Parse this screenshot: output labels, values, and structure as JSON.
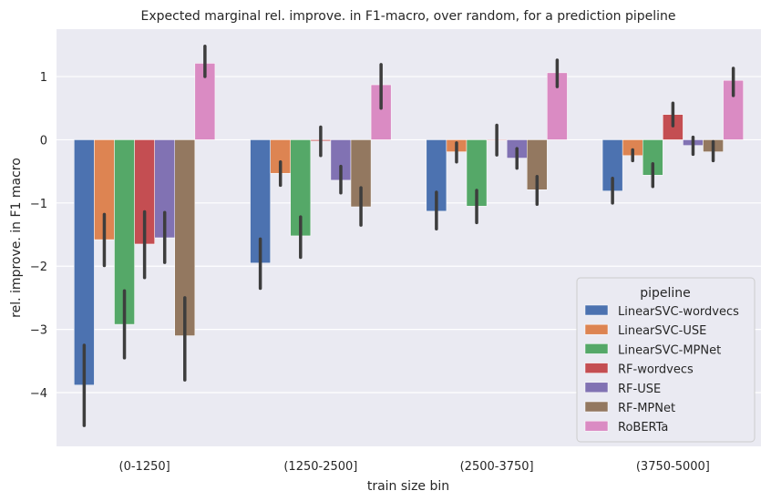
{
  "chart_data": {
    "type": "bar",
    "title": "Expected marginal rel. improve. in F1-macro, over random, for a prediction pipeline",
    "xlabel": "train size bin",
    "ylabel": "rel. improve. in F1 macro",
    "ylim": [
      -4.85,
      1.75
    ],
    "yticks": [
      1,
      0,
      -1,
      -2,
      -3,
      -4
    ],
    "ytick_labels": [
      "1",
      "0",
      "−1",
      "−2",
      "−3",
      "−4"
    ],
    "grid": true,
    "legend_title": "pipeline",
    "legend_position": "lower right",
    "categories": [
      "(0-1250]",
      "(1250-2500]",
      "(2500-3750]",
      "(3750-5000]"
    ],
    "series": [
      {
        "name": "LinearSVC-wordvecs",
        "color": "#4c72b0",
        "values": [
          -3.88,
          -1.95,
          -1.13,
          -0.81
        ],
        "ci": [
          [
            -4.52,
            -3.25
          ],
          [
            -2.35,
            -1.57
          ],
          [
            -1.41,
            -0.83
          ],
          [
            -1.0,
            -0.61
          ]
        ]
      },
      {
        "name": "LinearSVC-USE",
        "color": "#dd8452",
        "values": [
          -1.58,
          -0.53,
          -0.19,
          -0.25
        ],
        "ci": [
          [
            -1.99,
            -1.18
          ],
          [
            -0.72,
            -0.35
          ],
          [
            -0.35,
            -0.05
          ],
          [
            -0.33,
            -0.16
          ]
        ]
      },
      {
        "name": "LinearSVC-MPNet",
        "color": "#55a868",
        "values": [
          -2.92,
          -1.52,
          -1.05,
          -0.56
        ],
        "ci": [
          [
            -3.45,
            -2.39
          ],
          [
            -1.86,
            -1.22
          ],
          [
            -1.31,
            -0.8
          ],
          [
            -0.74,
            -0.38
          ]
        ]
      },
      {
        "name": "RF-wordvecs",
        "color": "#c44e52",
        "values": [
          -1.65,
          -0.02,
          -0.01,
          0.4
        ],
        "ci": [
          [
            -2.18,
            -1.14
          ],
          [
            -0.25,
            0.2
          ],
          [
            -0.24,
            0.23
          ],
          [
            0.22,
            0.58
          ]
        ]
      },
      {
        "name": "RF-USE",
        "color": "#8172b3",
        "values": [
          -1.55,
          -0.64,
          -0.29,
          -0.09
        ],
        "ci": [
          [
            -1.94,
            -1.15
          ],
          [
            -0.84,
            -0.42
          ],
          [
            -0.45,
            -0.14
          ],
          [
            -0.23,
            0.04
          ]
        ]
      },
      {
        "name": "RF-MPNet",
        "color": "#937860",
        "values": [
          -3.1,
          -1.06,
          -0.79,
          -0.19
        ],
        "ci": [
          [
            -3.8,
            -2.5
          ],
          [
            -1.35,
            -0.76
          ],
          [
            -1.02,
            -0.58
          ],
          [
            -0.33,
            -0.03
          ]
        ]
      },
      {
        "name": "RoBERTa",
        "color": "#da8bc3",
        "values": [
          1.21,
          0.87,
          1.06,
          0.94
        ],
        "ci": [
          [
            1.0,
            1.48
          ],
          [
            0.5,
            1.19
          ],
          [
            0.84,
            1.26
          ],
          [
            0.7,
            1.13
          ]
        ]
      }
    ]
  }
}
